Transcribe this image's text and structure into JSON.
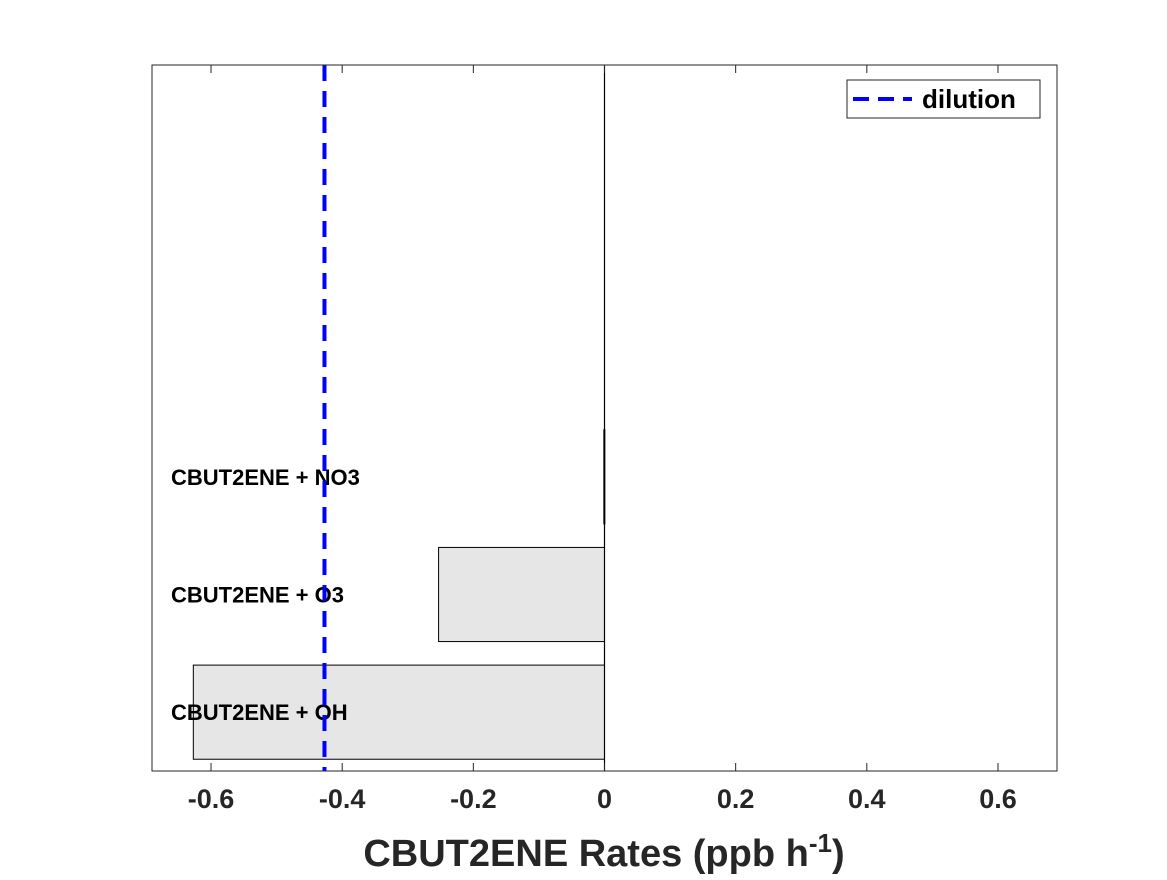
{
  "chart_data": {
    "type": "bar",
    "orientation": "horizontal",
    "categories": [
      "CBUT2ENE + OH",
      "CBUT2ENE + O3",
      "CBUT2ENE + NO3"
    ],
    "values": [
      -0.627,
      -0.253,
      -0.001
    ],
    "slots": 6,
    "bar_color": "#e6e6e6",
    "xlabel": "CBUT2ENE Rates (ppb h",
    "xlabel_superscript": "-1",
    "xlabel_suffix": ")",
    "xlim": [
      -0.69,
      0.69
    ],
    "xticks": [
      -0.6,
      -0.4,
      -0.2,
      0,
      0.2,
      0.4,
      0.6
    ],
    "xtick_labels": [
      "-0.6",
      "-0.4",
      "-0.2",
      "0",
      "0.2",
      "0.4",
      "0.6"
    ],
    "grid": false,
    "reference_line": {
      "name": "dilution",
      "x": -0.427,
      "color": "#0000ff",
      "style": "dashed"
    },
    "legend": {
      "position": "top-right",
      "entries": [
        "dilution"
      ]
    }
  }
}
